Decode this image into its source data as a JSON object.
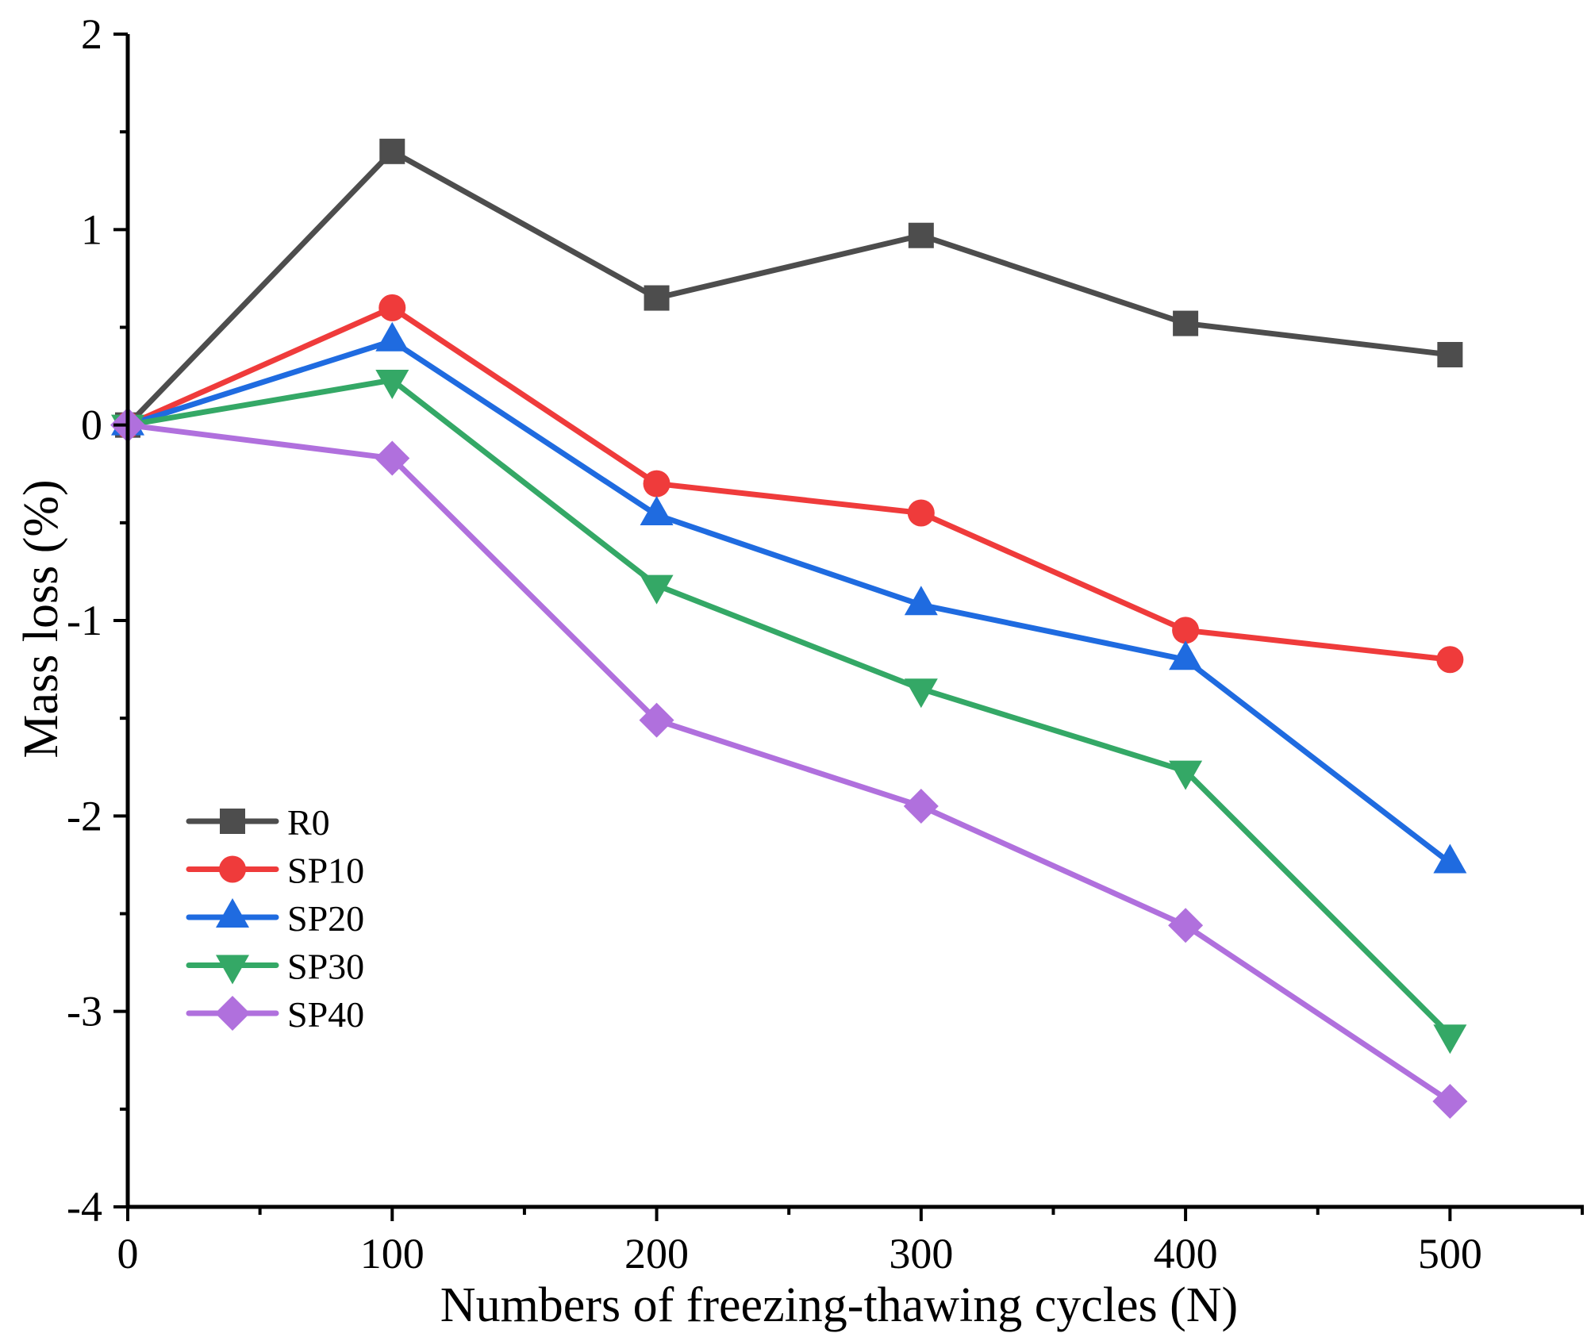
{
  "chart_data": {
    "type": "line",
    "title": "",
    "xlabel": "Numbers of freezing-thawing cycles (N)",
    "ylabel": "Mass loss (%)",
    "xlim": [
      0,
      550
    ],
    "ylim": [
      -4,
      2
    ],
    "x_major_ticks": [
      0,
      100,
      200,
      300,
      400,
      500
    ],
    "x_minor_ticks": [
      50,
      150,
      250,
      350,
      450,
      550
    ],
    "x_tick_labels": [
      "0",
      "100",
      "200",
      "300",
      "400",
      "500"
    ],
    "y_major_ticks": [
      -4,
      -3,
      -2,
      -1,
      0,
      1,
      2
    ],
    "y_minor_ticks": [
      -3.5,
      -2.5,
      -1.5,
      -0.5,
      0.5,
      1.5
    ],
    "y_tick_labels": [
      "-4",
      "-3",
      "-2",
      "-1",
      "0",
      "1",
      "2"
    ],
    "grid": false,
    "legend_position": "bottom-left",
    "x": [
      0,
      100,
      200,
      300,
      400,
      500
    ],
    "series": [
      {
        "name": "R0",
        "marker": "square",
        "color": "#4d4d4d",
        "values": [
          0,
          1.4,
          0.65,
          0.97,
          0.52,
          0.36
        ]
      },
      {
        "name": "SP10",
        "marker": "circle",
        "color": "#ef3b3b",
        "values": [
          0,
          0.6,
          -0.3,
          -0.45,
          -1.05,
          -1.2
        ]
      },
      {
        "name": "SP20",
        "marker": "triangle-up",
        "color": "#1f6be0",
        "values": [
          0,
          0.43,
          -0.46,
          -0.92,
          -1.2,
          -2.24
        ]
      },
      {
        "name": "SP30",
        "marker": "triangle-down",
        "color": "#34a866",
        "values": [
          0,
          0.23,
          -0.82,
          -1.35,
          -1.77,
          -3.12
        ]
      },
      {
        "name": "SP40",
        "marker": "diamond",
        "color": "#b070dd",
        "values": [
          0,
          -0.17,
          -1.51,
          -1.95,
          -2.56,
          -3.46
        ]
      }
    ]
  }
}
